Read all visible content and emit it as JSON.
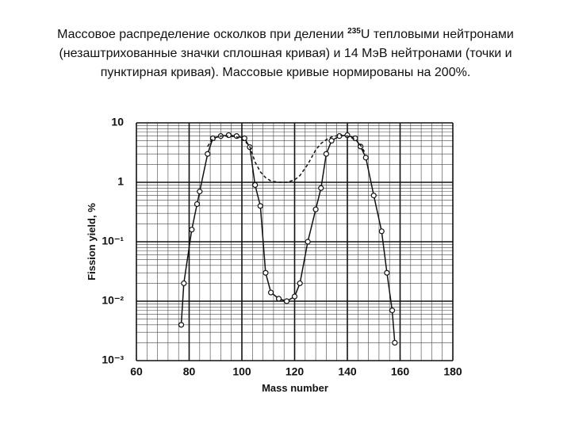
{
  "chart_data": {
    "type": "line",
    "title": {
      "pre": "Массовое распределение осколков при делении ",
      "sup": "235",
      "post": "U тепловыми нейтронами",
      "line2": "(незаштрихованные значки сплошная кривая) и  14 МэВ нейтронами (точки и",
      "line3": "пунктирная кривая). Массовые кривые нормированы  на 200%."
    },
    "x_label": "Mass number",
    "y_label": "Fission yield, %",
    "log_y": true,
    "grid": true,
    "xlim": [
      60,
      180
    ],
    "xticks": [
      60,
      80,
      100,
      120,
      140,
      160,
      180
    ],
    "ylim": [
      0.001,
      10
    ],
    "yticks": [
      {
        "value": 0.001,
        "label": "10⁻³"
      },
      {
        "value": 0.01,
        "label": "10⁻²"
      },
      {
        "value": 0.1,
        "label": "10⁻¹"
      },
      1,
      10
    ],
    "x": [
      77,
      78,
      81,
      83,
      84,
      87,
      89,
      92,
      95,
      98,
      101,
      103,
      105,
      107,
      109,
      111,
      114,
      117,
      120,
      122,
      125,
      128,
      130,
      132,
      134,
      137,
      140,
      143,
      145,
      147,
      150,
      153,
      155,
      157,
      158
    ],
    "series": [
      {
        "name": "thermal neutrons",
        "color": "#111111",
        "dashed": false,
        "markers": true,
        "values": [
          0.004,
          0.02,
          0.16,
          0.43,
          0.7,
          3.0,
          5.5,
          6.0,
          6.2,
          6.0,
          5.5,
          3.9,
          0.9,
          0.4,
          0.03,
          0.014,
          0.011,
          0.01,
          0.012,
          0.02,
          0.1,
          0.35,
          0.8,
          3.0,
          5.0,
          6.0,
          6.2,
          5.5,
          4.0,
          2.6,
          0.6,
          0.15,
          0.03,
          0.007,
          0.002
        ]
      },
      {
        "name": "14 MeV neutrons",
        "color": "#111111",
        "dashed": true,
        "markers": false,
        "values": [
          null,
          null,
          null,
          null,
          null,
          4.0,
          5.5,
          6.0,
          6.0,
          5.8,
          5.0,
          4.0,
          2.2,
          1.5,
          1.2,
          1.05,
          1.0,
          1.0,
          1.1,
          1.3,
          2.0,
          3.5,
          4.5,
          5.2,
          5.8,
          6.2,
          6.0,
          5.3,
          4.2,
          3.0,
          null,
          null,
          null,
          null,
          null
        ]
      }
    ]
  }
}
